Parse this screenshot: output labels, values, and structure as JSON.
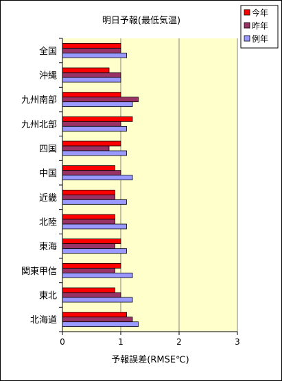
{
  "chart_data": {
    "type": "bar",
    "orientation": "horizontal",
    "title": "明日予報(最低気温)",
    "xlabel": "予報誤差(RMSE℃)",
    "ylabel": "",
    "xlim": [
      0,
      3
    ],
    "xticks": [
      "0",
      "1",
      "2",
      "3"
    ],
    "grid": "vertical gridlines",
    "plot_background": "#ffffcc",
    "legend_position": "top-right",
    "categories": [
      "全国",
      "沖縄",
      "九州南部",
      "九州北部",
      "四国",
      "中国",
      "近畿",
      "北陸",
      "東海",
      "関東甲信",
      "東北",
      "北海道"
    ],
    "series": [
      {
        "name": "今年",
        "color": "#ff0000",
        "values": [
          1.0,
          0.8,
          1.0,
          1.2,
          1.0,
          0.9,
          0.9,
          0.9,
          1.0,
          1.0,
          0.9,
          1.1
        ]
      },
      {
        "name": "昨年",
        "color": "#993366",
        "values": [
          1.0,
          1.0,
          1.3,
          1.0,
          0.8,
          1.0,
          0.9,
          0.9,
          0.9,
          0.9,
          1.0,
          1.2
        ]
      },
      {
        "name": "例年",
        "color": "#9999ff",
        "values": [
          1.1,
          1.0,
          1.2,
          1.1,
          1.1,
          1.2,
          1.1,
          1.1,
          1.1,
          1.2,
          1.2,
          1.3
        ]
      }
    ]
  }
}
